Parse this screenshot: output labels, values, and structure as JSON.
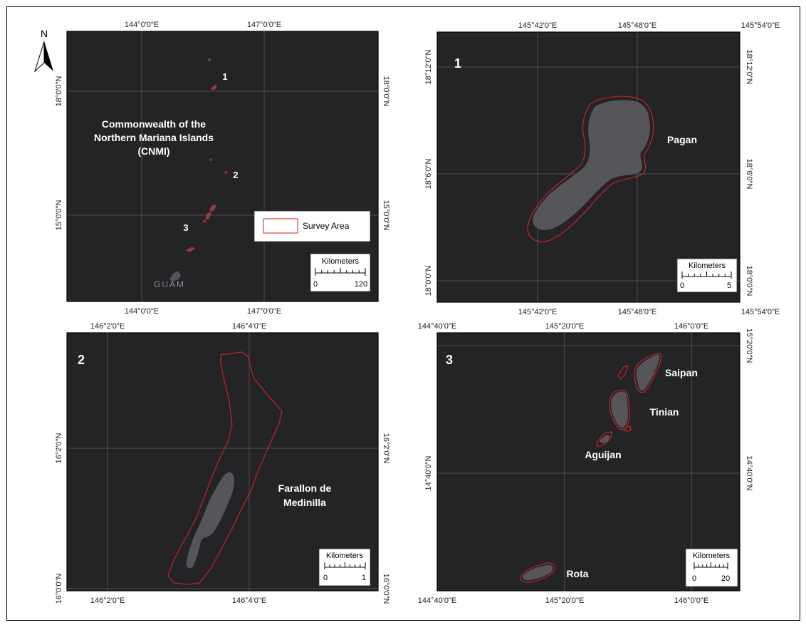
{
  "north_arrow": {
    "label": "N"
  },
  "legend": {
    "item": "Survey Area",
    "color": "#d0242a"
  },
  "panels": {
    "overview": {
      "title_lines": [
        "Commonwealth of the",
        "Northern Mariana Islands",
        "(CNMI)"
      ],
      "top_ticks": [
        "144°0'0\"E",
        "147°0'0\"E"
      ],
      "bottom_ticks": [
        "144°0'0\"E",
        "147°0'0\"E"
      ],
      "left_ticks": [
        "18°0'0\"N",
        "15°0'0\"N"
      ],
      "right_ticks": [
        "18°0'0\"N",
        "15°0'0\"N"
      ],
      "markers": [
        "1",
        "2",
        "3"
      ],
      "place_label": "GUAM",
      "scale": {
        "title": "Kilometers",
        "min": "0",
        "max": "120"
      }
    },
    "pagan": {
      "number": "1",
      "island_label": "Pagan",
      "top_ticks": [
        "145°42'0\"E",
        "145°48'0\"E",
        "145°54'0\"E"
      ],
      "bottom_ticks": [
        "145°42'0\"E",
        "145°48'0\"E",
        "145°54'0\"E"
      ],
      "left_ticks": [
        "18°12'0\"N",
        "18°6'0\"N",
        "18°0'0\"N"
      ],
      "right_ticks": [
        "18°12'0\"N",
        "18°6'0\"N",
        "18°0'0\"N"
      ],
      "scale": {
        "title": "Kilometers",
        "min": "0",
        "max": "5"
      }
    },
    "farallon": {
      "number": "2",
      "island_label_lines": [
        "Farallon de",
        "Medinilla"
      ],
      "top_ticks": [
        "146°2'0\"E",
        "146°4'0\"E"
      ],
      "bottom_ticks": [
        "146°2'0\"E",
        "146°4'0\"E"
      ],
      "left_ticks": [
        "16°2'0\"N",
        "16°0'0\"N"
      ],
      "right_ticks": [
        "16°2'0\"N",
        "16°0'0\"N"
      ],
      "scale": {
        "title": "Kilometers",
        "min": "0",
        "max": "1"
      }
    },
    "southern": {
      "number": "3",
      "island_labels": [
        "Saipan",
        "Tinian",
        "Aguijan",
        "Rota"
      ],
      "top_ticks": [
        "144°40'0\"E",
        "145°20'0\"E",
        "146°0'0\"E"
      ],
      "bottom_ticks": [
        "144°40'0\"E",
        "145°20'0\"E",
        "146°0'0\"E"
      ],
      "left_ticks": [
        "14°40'0\"N"
      ],
      "right_ticks": [
        "15°20'0\"N",
        "14°40'0\"N"
      ],
      "scale": {
        "title": "Kilometers",
        "min": "0",
        "max": "20"
      }
    }
  }
}
